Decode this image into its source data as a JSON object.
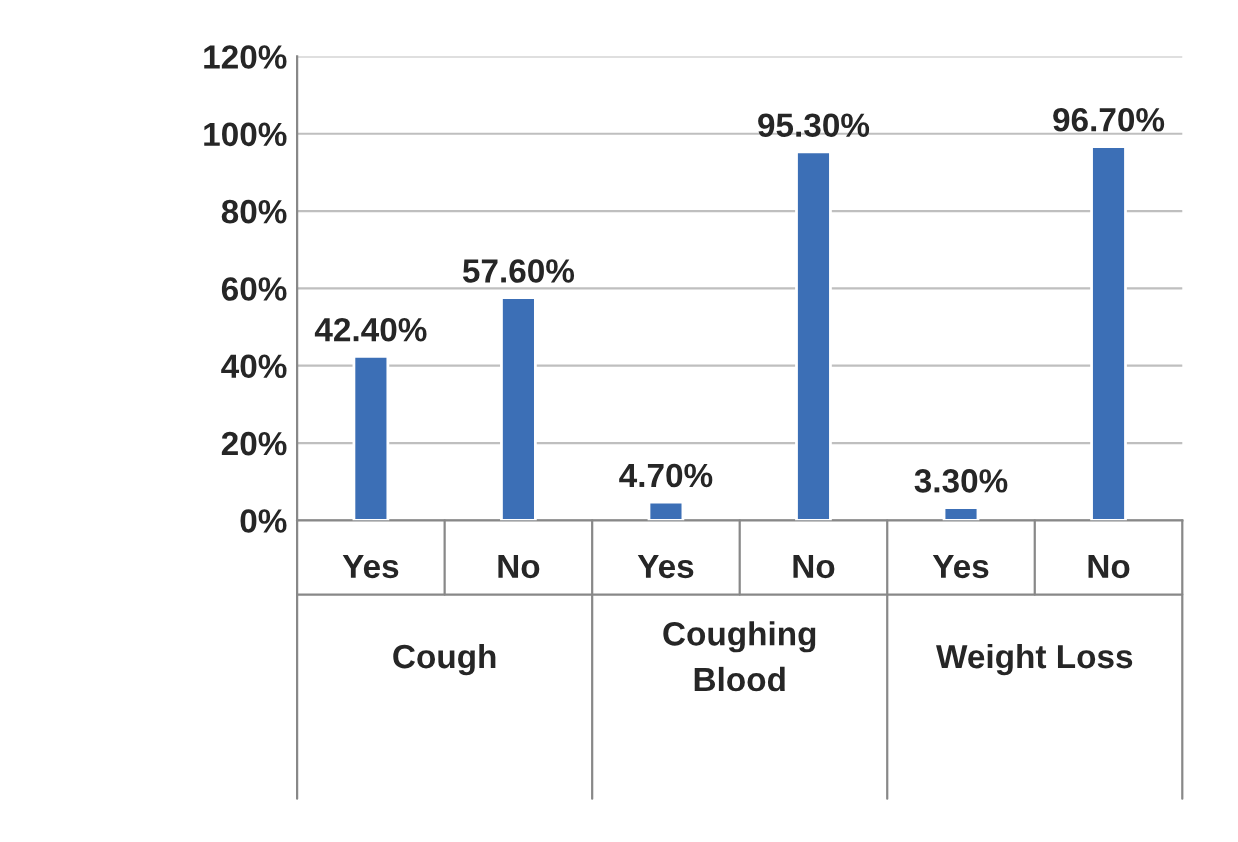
{
  "chart_data": {
    "type": "bar",
    "categories": [
      "Yes",
      "No",
      "Yes",
      "No",
      "Yes",
      "No"
    ],
    "values": [
      42.4,
      57.6,
      4.7,
      95.3,
      3.3,
      96.7
    ],
    "value_labels": [
      "42.40%",
      "57.60%",
      "4.70%",
      "95.30%",
      "3.30%",
      "96.70%"
    ],
    "color": "#3c6fb6",
    "ylim": [
      0,
      120
    ],
    "yticks": [
      {
        "value": 0,
        "label": "0%"
      },
      {
        "value": 20,
        "label": "20%"
      },
      {
        "value": 40,
        "label": "40%"
      },
      {
        "value": 60,
        "label": "60%"
      },
      {
        "value": 80,
        "label": "80%"
      },
      {
        "value": 100,
        "label": "100%"
      },
      {
        "value": 120,
        "label": "120%"
      }
    ],
    "grid": "y",
    "legend": false,
    "annotations": [
      "Cough",
      "Coughing\nBlood",
      "Weight Loss"
    ]
  }
}
